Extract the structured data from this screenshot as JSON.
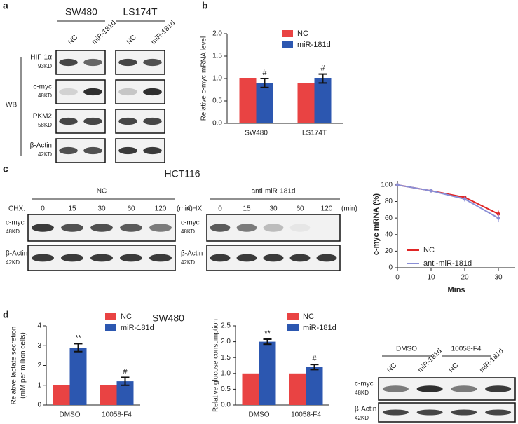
{
  "chart_data": [
    {
      "type": "bar",
      "panel": "b",
      "y_label": [
        "Relative c-myc mRNA level"
      ],
      "categories": [
        "SW480",
        "LS174T"
      ],
      "series": [
        {
          "name": "NC",
          "color": "#e94343",
          "values": [
            1.0,
            0.9
          ]
        },
        {
          "name": "miR-181d",
          "color": "#2c57b0",
          "values": [
            0.9,
            1.0
          ],
          "errors": [
            0.1,
            0.1
          ],
          "significance": [
            "#",
            "#"
          ]
        }
      ],
      "ylim": [
        0,
        2.0
      ],
      "yticks": [
        {
          "value": 0,
          "label": "0.0"
        },
        {
          "value": 0.5,
          "label": "0.5"
        },
        {
          "value": 1.0,
          "label": "1.0"
        },
        {
          "value": 1.5,
          "label": "1.5"
        },
        {
          "value": 2.0,
          "label": "2.0"
        }
      ]
    },
    {
      "type": "line",
      "y_label": [
        "c-myc mRNA (%)"
      ],
      "x_label": "Mins",
      "x": [
        0,
        10,
        20,
        30
      ],
      "series": [
        {
          "name": "NC",
          "color": "#e02525",
          "values": [
            100,
            93,
            85,
            65
          ],
          "errors": [
            0,
            1,
            2,
            4
          ]
        },
        {
          "name": "anti-miR-181d",
          "color": "#8a8fd6",
          "values": [
            100,
            93,
            83,
            60
          ],
          "errors": [
            0,
            2,
            3,
            5
          ]
        }
      ],
      "xlim": [
        0,
        35
      ],
      "xticks": [
        0,
        10,
        20,
        30
      ],
      "ylim": [
        0,
        105
      ],
      "yticks": [
        0,
        20,
        40,
        60,
        80,
        100
      ]
    },
    {
      "type": "bar",
      "y_label": [
        "Relative lactate secretion",
        "(mM per million cells)"
      ],
      "categories": [
        "DMSO",
        "10058-F4"
      ],
      "series": [
        {
          "name": "NC",
          "color": "#e94343",
          "values": [
            1.0,
            1.0
          ]
        },
        {
          "name": "miR-181d",
          "color": "#2c57b0",
          "values": [
            2.9,
            1.2
          ],
          "errors": [
            0.2,
            0.2
          ],
          "significance": [
            "**",
            "#"
          ]
        }
      ],
      "ylim": [
        0,
        4
      ],
      "yticks": [
        0,
        1,
        2,
        3,
        4
      ]
    },
    {
      "type": "bar",
      "y_label": [
        "Relative glucose consumption"
      ],
      "categories": [
        "DMSO",
        "10058-F4"
      ],
      "series": [
        {
          "name": "NC",
          "color": "#e94343",
          "values": [
            1.0,
            1.0
          ]
        },
        {
          "name": "miR-181d",
          "color": "#2c57b0",
          "values": [
            2.0,
            1.2
          ],
          "errors": [
            0.08,
            0.08
          ],
          "significance": [
            "**",
            "#"
          ]
        }
      ],
      "ylim": [
        0,
        2.5
      ],
      "yticks": [
        {
          "value": 0,
          "label": "0.0"
        },
        {
          "value": 0.5,
          "label": "0.5"
        },
        {
          "value": 1.0,
          "label": "1.0"
        },
        {
          "value": 1.5,
          "label": "1.5"
        },
        {
          "value": 2.0,
          "label": "2.0"
        },
        {
          "value": 2.5,
          "label": "2.5"
        }
      ]
    }
  ],
  "blots": {
    "a": {
      "label": "a",
      "cell_lines": [
        "SW480",
        "LS174T"
      ],
      "lanes": [
        "NC",
        "miR-181d"
      ],
      "method": "WB",
      "rows": [
        {
          "name": "HIF-1α",
          "size": "93KD"
        },
        {
          "name": "c-myc",
          "size": "48KD"
        },
        {
          "name": "PKM2",
          "size": "58KD"
        },
        {
          "name": "β-Actin",
          "size": "42KD"
        }
      ]
    },
    "c": {
      "label": "c",
      "title": "HCT116",
      "groups": [
        "NC",
        "anti-miR-181d"
      ],
      "treatment": "CHX:",
      "times": [
        0,
        15,
        30,
        60,
        120
      ],
      "unit": "(min)",
      "rows": [
        {
          "name": "c-myc",
          "size": "48KD"
        },
        {
          "name": "β-Actin",
          "size": "42KD"
        }
      ]
    },
    "d": {
      "label": "d",
      "title": "SW480",
      "groups": [
        "DMSO",
        "10058-F4"
      ],
      "lanes": [
        "NC",
        "miR-181d"
      ],
      "rows": [
        {
          "name": "c-myc",
          "size": "48KD"
        },
        {
          "name": "β-Actin",
          "size": "42KD"
        }
      ]
    }
  }
}
